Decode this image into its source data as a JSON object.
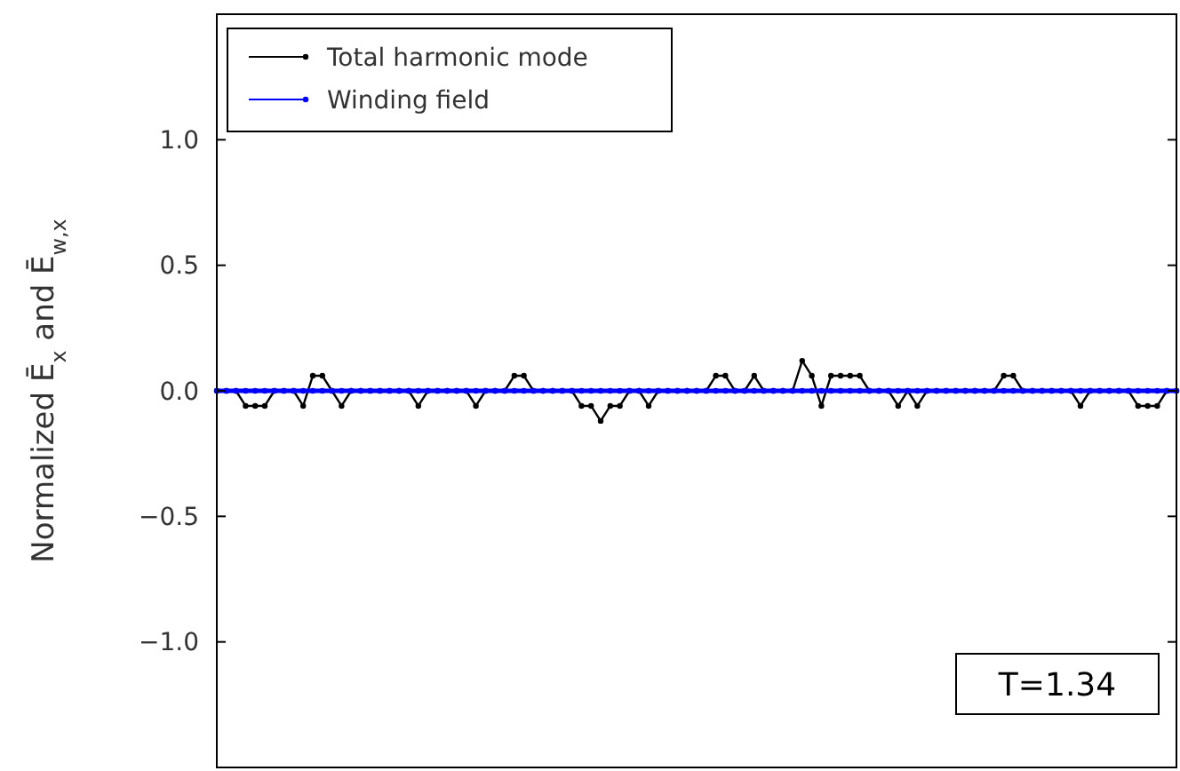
{
  "chart_data": {
    "type": "line",
    "ylabel": "Normalized  Ē$_{x}$  and  Ē$_{w,x}$",
    "categories": [
      null,
      null,
      null,
      null,
      null,
      null,
      null,
      null,
      null,
      null,
      null,
      null,
      null,
      null,
      null,
      null,
      null,
      null,
      null,
      null,
      null,
      null,
      null,
      null,
      null,
      null,
      null,
      null,
      null,
      null,
      null,
      null,
      null,
      null,
      null,
      null,
      null,
      null,
      null,
      null,
      null,
      null,
      null,
      null,
      null,
      null,
      null,
      null,
      null,
      null,
      null,
      null,
      null,
      null,
      null,
      null,
      null,
      null,
      null,
      null,
      null,
      null,
      null,
      null,
      null,
      null,
      null,
      null,
      null,
      null,
      null,
      null,
      null,
      null,
      null,
      null,
      null,
      null,
      null,
      null,
      null,
      null,
      null,
      null,
      null,
      null,
      null,
      null,
      null,
      null,
      null,
      null,
      null,
      null,
      null,
      null,
      null,
      null,
      null,
      null,
      null
    ],
    "series": [
      {
        "name": "Total harmonic mode",
        "color": "#000000",
        "values": [
          0,
          0,
          0,
          -0.06,
          -0.06,
          -0.06,
          0,
          0,
          0,
          -0.06,
          0.06,
          0.06,
          0,
          -0.06,
          0,
          0,
          0,
          0,
          0,
          0,
          0,
          -0.06,
          0,
          0,
          0,
          0,
          0,
          -0.06,
          0,
          0,
          0,
          0.06,
          0.06,
          0,
          0,
          0,
          0,
          0,
          -0.06,
          -0.06,
          -0.12,
          -0.06,
          -0.06,
          0,
          0,
          -0.06,
          0,
          0,
          0,
          0,
          0,
          0,
          0.06,
          0.06,
          0,
          0,
          0.06,
          0,
          0,
          0,
          0,
          0.12,
          0.06,
          -0.06,
          0.06,
          0.06,
          0.06,
          0.06,
          0,
          0,
          0,
          -0.06,
          0,
          -0.06,
          0,
          0,
          0,
          0,
          0,
          0,
          0,
          0,
          0.06,
          0.06,
          0,
          0,
          0,
          0,
          0,
          0,
          -0.06,
          0,
          0,
          0,
          0,
          0,
          -0.06,
          -0.06,
          -0.06,
          0,
          0
        ]
      },
      {
        "name": "Winding field",
        "color": "#0000ff",
        "values": [
          0,
          0,
          0,
          0,
          0,
          0,
          0,
          0,
          0,
          0,
          0,
          0,
          0,
          0,
          0,
          0,
          0,
          0,
          0,
          0,
          0,
          0,
          0,
          0,
          0,
          0,
          0,
          0,
          0,
          0,
          0,
          0,
          0,
          0,
          0,
          0,
          0,
          0,
          0,
          0,
          0,
          0,
          0,
          0,
          0,
          0,
          0,
          0,
          0,
          0,
          0,
          0,
          0,
          0,
          0,
          0,
          0,
          0,
          0,
          0,
          0,
          0,
          0,
          0,
          0,
          0,
          0,
          0,
          0,
          0,
          0,
          0,
          0,
          0,
          0,
          0,
          0,
          0,
          0,
          0,
          0,
          0,
          0,
          0,
          0,
          0,
          0,
          0,
          0,
          0,
          0,
          0,
          0,
          0,
          0,
          0,
          0,
          0,
          0,
          0,
          0
        ]
      }
    ],
    "ylim": [
      -1.5,
      1.5
    ],
    "yticks": [
      {
        "value": 1,
        "label": "1.0"
      },
      {
        "value": 0.5,
        "label": "0.5"
      },
      {
        "value": 0,
        "label": "0.0"
      },
      {
        "value": -0.5,
        "label": "−0.5"
      },
      {
        "value": -1,
        "label": "−1.0"
      }
    ],
    "tick_labels": "y",
    "legend": "top left",
    "marker": "circle",
    "line_style": "solid",
    "grid": false,
    "annotations": [
      "T=1.34"
    ]
  }
}
